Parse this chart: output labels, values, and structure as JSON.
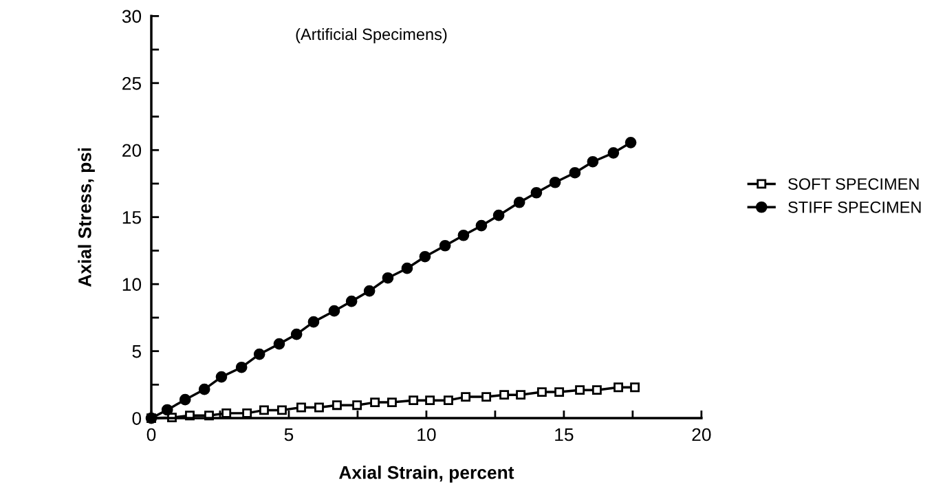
{
  "chart_data": {
    "type": "line",
    "xlabel": "Axial Strain, percent",
    "ylabel": "Axial Stress, psi",
    "annotations": [
      "(Artificial Specimens)"
    ],
    "xlim": [
      0,
      20
    ],
    "ylim": [
      0,
      30
    ],
    "xticks": [
      0,
      {
        "value": 2.5,
        "label": null
      },
      5,
      {
        "value": 7.5,
        "label": null
      },
      10,
      {
        "value": 12.5,
        "label": null
      },
      15,
      {
        "value": 17.5,
        "label": null
      },
      20
    ],
    "yticks": [
      0,
      {
        "value": 2.5,
        "label": null
      },
      5,
      {
        "value": 7.5,
        "label": null
      },
      10,
      {
        "value": 12.5,
        "label": null
      },
      15,
      {
        "value": 17.5,
        "label": null
      },
      20,
      {
        "value": 22.5,
        "label": null
      },
      25,
      {
        "value": 27.5,
        "label": null
      },
      30
    ],
    "grid": false,
    "legend": "right",
    "line_style": "solid",
    "series": [
      {
        "name": "SOFT SPECIMEN",
        "color": "#000000",
        "marker": "square",
        "x": [
          0,
          0.75,
          1.4,
          2.1,
          2.73,
          3.48,
          4.1,
          4.75,
          5.45,
          6.1,
          6.75,
          7.48,
          8.13,
          8.75,
          9.53,
          10.13,
          10.8,
          11.43,
          12.18,
          12.83,
          13.43,
          14.2,
          14.83,
          15.58,
          16.2,
          16.98,
          17.58
        ],
        "values": [
          0,
          0.05,
          0.2,
          0.2,
          0.37,
          0.37,
          0.6,
          0.6,
          0.8,
          0.8,
          0.97,
          0.97,
          1.18,
          1.18,
          1.33,
          1.33,
          1.33,
          1.59,
          1.59,
          1.74,
          1.74,
          1.95,
          1.95,
          2.1,
          2.1,
          2.3,
          2.3
        ]
      },
      {
        "name": "STIFF SPECIMEN",
        "color": "#000000",
        "marker": "circle",
        "x": [
          0,
          0.58,
          1.23,
          1.93,
          2.55,
          3.28,
          3.93,
          4.65,
          5.28,
          5.9,
          6.65,
          7.28,
          7.93,
          8.6,
          9.3,
          9.95,
          10.68,
          11.35,
          12.0,
          12.63,
          13.38,
          14.0,
          14.68,
          15.4,
          16.05,
          16.8,
          17.43
        ],
        "values": [
          0,
          0.62,
          1.38,
          2.15,
          3.08,
          3.79,
          4.77,
          5.54,
          6.26,
          7.18,
          8.0,
          8.72,
          9.49,
          10.46,
          11.18,
          12.05,
          12.87,
          13.64,
          14.36,
          15.13,
          16.1,
          16.82,
          17.59,
          18.31,
          19.13,
          19.79,
          20.56
        ]
      }
    ]
  }
}
